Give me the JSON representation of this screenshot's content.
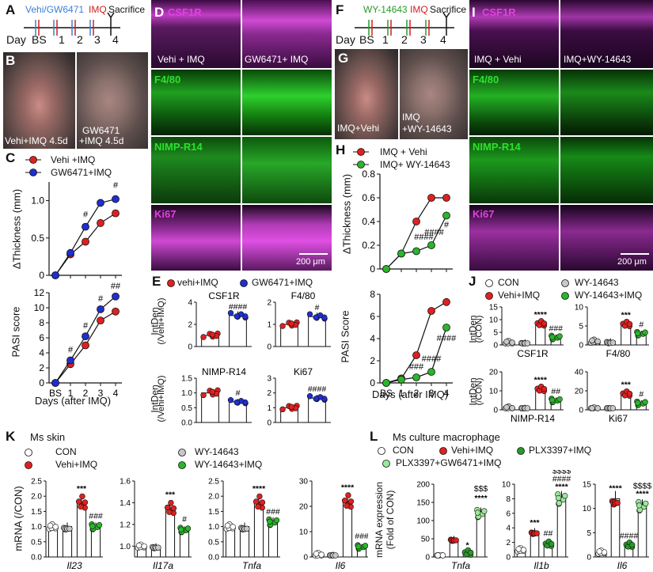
{
  "panels": {
    "A": {
      "letter": "A",
      "group": "Vehi/GW6471",
      "imq": "IMQ",
      "sacrifice": "Sacrifice",
      "day": "Day",
      "days": [
        "BS",
        "1",
        "2",
        "3",
        "4"
      ]
    },
    "B": {
      "letter": "B",
      "left": "Vehi+IMQ 4.5d",
      "right1": "GW6471",
      "right2": "+IMQ 4.5d"
    },
    "C": {
      "letter": "C",
      "legend": [
        "Vehi +IMQ",
        "GW6471+IMQ"
      ],
      "ylabel_top": "ΔThickness (mm)",
      "ylabel_bottom": "PASI score",
      "xlabel": "Days (after IMQ)",
      "xticks": [
        "BS",
        "1",
        "2",
        "3",
        "4"
      ]
    },
    "D": {
      "letter": "D",
      "stains": [
        "CSF1R",
        "F4/80",
        "NIMP-R14",
        "Ki67"
      ],
      "left_cond": "Vehi + IMQ",
      "right_cond": "GW6471+ IMQ",
      "scale": "200 μm"
    },
    "E": {
      "letter": "E",
      "legend": [
        "vehi+IMQ",
        "GW6471+IMQ"
      ],
      "ylabel": "IntDen",
      "ysub": "(/Vehi+IMQ)",
      "subplots": [
        "CSF1R",
        "F4/80",
        "NIMP-R14",
        "Ki67"
      ]
    },
    "F": {
      "letter": "F",
      "group": "WY-14643",
      "imq": "IMQ",
      "sacrifice": "Sacrifice",
      "day": "Day",
      "days": [
        "BS",
        "1",
        "2",
        "3",
        "4"
      ]
    },
    "G": {
      "letter": "G",
      "left": "IMQ+Vehi",
      "right1": "IMQ",
      "right2": "+WY-14643"
    },
    "H": {
      "letter": "H",
      "legend": [
        "IMQ + Vehi",
        "IMQ+ WY-14643"
      ],
      "ylabel_top": "ΔThickness (mm)",
      "ylabel_bottom": "PASI Score",
      "xlabel": "Days (after IMQ)",
      "xticks": [
        "BS",
        "1",
        "2",
        "3",
        "4"
      ]
    },
    "I": {
      "letter": "I",
      "stains": [
        "CSF1R",
        "F4/80",
        "NIMP-R14",
        "Ki67"
      ],
      "left_cond": "IMQ + Vehi",
      "right_cond": "IMQ+WY-14643",
      "scale": "200 μm"
    },
    "J": {
      "letter": "J",
      "legend": [
        "CON",
        "WY-14643",
        "Vehi+IMQ",
        "WY-14643+IMQ"
      ],
      "ylabel": "IntDen",
      "ysub": "(/CON)",
      "subplots": [
        "CSF1R",
        "F4/80",
        "NIMP-R14",
        "Ki67"
      ]
    },
    "K": {
      "letter": "K",
      "title": "Ms skin",
      "legend": [
        "CON",
        "WY-14643",
        "Vehi+IMQ",
        "WY-14643+IMQ"
      ],
      "ylabel": "mRNA (/CON)",
      "genes": [
        "Il23",
        "Il17a",
        "Tnfa",
        "Il6"
      ]
    },
    "L": {
      "letter": "L",
      "title": "Ms culture macrophage",
      "legend": [
        "CON",
        "Vehi+IMQ",
        "PLX3397+IMQ",
        "PLX3397+GW6471+IMQ"
      ],
      "ylabel1": "mRNA expression",
      "ylabel2": "(Fold of CON)",
      "genes": [
        "Tnfa",
        "Il1b",
        "Il6"
      ]
    }
  },
  "chart_data": [
    {
      "id": "C_thickness",
      "type": "line",
      "x": [
        "BS",
        "1",
        "2",
        "3",
        "4"
      ],
      "series": [
        {
          "name": "Vehi +IMQ",
          "values": [
            0,
            0.28,
            0.45,
            0.7,
            0.83
          ]
        },
        {
          "name": "GW6471+IMQ",
          "values": [
            0,
            0.3,
            0.65,
            0.97,
            1.02
          ]
        }
      ],
      "ylim": [
        0,
        1.25
      ],
      "yticks": [
        "0",
        "0.5",
        "1.0"
      ],
      "annotations": [
        "#",
        "#"
      ]
    },
    {
      "id": "C_pasi",
      "type": "line",
      "x": [
        "BS",
        "1",
        "2",
        "3",
        "4"
      ],
      "series": [
        {
          "name": "Vehi +IMQ",
          "values": [
            0,
            2.5,
            5.0,
            8.3,
            9.5
          ]
        },
        {
          "name": "GW6471+IMQ",
          "values": [
            0,
            3.0,
            6.2,
            9.8,
            11.5
          ]
        }
      ],
      "ylim": [
        0,
        12
      ],
      "yticks": [
        "0",
        "2",
        "4",
        "6",
        "8",
        "10",
        "12"
      ],
      "annotations": [
        "#",
        "#",
        "#",
        "##"
      ]
    },
    {
      "id": "H_thickness",
      "type": "line",
      "x": [
        "BS",
        "1",
        "2",
        "3",
        "4"
      ],
      "series": [
        {
          "name": "IMQ + Vehi",
          "values": [
            0,
            0.13,
            0.4,
            0.6,
            0.6
          ]
        },
        {
          "name": "IMQ+ WY-14643",
          "values": [
            0,
            0.13,
            0.15,
            0.2,
            0.45
          ]
        }
      ],
      "ylim": [
        0,
        0.8
      ],
      "yticks": [
        "0",
        "0.2",
        "0.4",
        "0.6",
        "0.8"
      ],
      "annotations": [
        "####",
        "####",
        "#"
      ]
    },
    {
      "id": "H_pasi",
      "type": "line",
      "x": [
        "BS",
        "1",
        "2",
        "3",
        "4"
      ],
      "series": [
        {
          "name": "IMQ + Vehi",
          "values": [
            0,
            0.4,
            2.5,
            6.5,
            7.3
          ]
        },
        {
          "name": "IMQ+ WY-14643",
          "values": [
            0,
            0.3,
            0.5,
            1.0,
            5.0
          ]
        }
      ],
      "ylim": [
        0,
        8
      ],
      "yticks": [
        "0",
        "2",
        "4",
        "6",
        "8"
      ],
      "annotations": [
        "###",
        "####",
        "####"
      ]
    },
    {
      "id": "E",
      "type": "bar",
      "subplots": [
        {
          "title": "CSF1R",
          "values": [
            1.0,
            2.8
          ],
          "ylim": [
            0,
            4
          ],
          "yticks": [
            "0",
            "2",
            "4"
          ],
          "sig": "####"
        },
        {
          "title": "F4/80",
          "values": [
            1.0,
            1.35
          ],
          "ylim": [
            0,
            2
          ],
          "yticks": [
            "0",
            "1",
            "2"
          ],
          "sig": "#"
        },
        {
          "title": "NIMP-R14",
          "values": [
            1.0,
            0.7
          ],
          "ylim": [
            0,
            1.5
          ],
          "yticks": [
            "0.0",
            "0.5",
            "1.0",
            "1.5"
          ],
          "sig": "#"
        },
        {
          "title": "Ki67",
          "values": [
            1.0,
            1.65
          ],
          "ylim": [
            0,
            3
          ],
          "yticks": [
            "0",
            "1",
            "2",
            "3"
          ],
          "sig": "####"
        }
      ]
    },
    {
      "id": "J",
      "type": "bar",
      "subplots": [
        {
          "title": "CSF1R",
          "values": [
            1.0,
            1.1,
            8.5,
            3.0
          ],
          "ylim": [
            0,
            15
          ],
          "yticks": [
            "0",
            "5",
            "10",
            "15"
          ],
          "sig": [
            "****",
            "###"
          ]
        },
        {
          "title": "F4/80",
          "values": [
            1.0,
            1.0,
            5.5,
            3.0
          ],
          "ylim": [
            0,
            10
          ],
          "yticks": [
            "0",
            "5",
            "10"
          ],
          "sig": [
            "***",
            "#"
          ]
        },
        {
          "title": "NIMP-R14",
          "values": [
            1.0,
            1.2,
            11.0,
            5.0
          ],
          "ylim": [
            0,
            20
          ],
          "yticks": [
            "0",
            "10",
            "20"
          ],
          "sig": [
            "****",
            "##"
          ]
        },
        {
          "title": "Ki67",
          "values": [
            1.0,
            1.0,
            17.0,
            7.0
          ],
          "ylim": [
            0,
            40
          ],
          "yticks": [
            "0",
            "20",
            "40"
          ],
          "sig": [
            "***",
            "#"
          ]
        }
      ]
    },
    {
      "id": "K",
      "type": "bar",
      "subplots": [
        {
          "gene": "Il23",
          "values": [
            1.0,
            1.0,
            1.8,
            1.0
          ],
          "ylim": [
            0,
            2.5
          ],
          "yticks": [
            "0.0",
            "0.5",
            "1.0",
            "1.5",
            "2.0",
            "2.5"
          ],
          "sig": [
            "***",
            "###"
          ]
        },
        {
          "gene": "Il17a",
          "values": [
            1.0,
            1.0,
            1.35,
            1.15
          ],
          "ylim": [
            0.9,
            1.6
          ],
          "yticks": [
            "1.0",
            "1.2",
            "1.4",
            "1.6"
          ],
          "sig": [
            "***",
            "#"
          ]
        },
        {
          "gene": "Tnfa",
          "values": [
            1.0,
            1.0,
            1.8,
            1.15
          ],
          "ylim": [
            0,
            2.5
          ],
          "yticks": [
            "0.0",
            "0.5",
            "1.0",
            "1.5",
            "2.0",
            "2.5"
          ],
          "sig": [
            "****",
            "###"
          ]
        },
        {
          "gene": "Il6",
          "values": [
            1.0,
            1.0,
            22.0,
            4.0
          ],
          "ylim": [
            0,
            30
          ],
          "yticks": [
            "0",
            "10",
            "20",
            "30"
          ],
          "sig": [
            "****",
            "###"
          ]
        }
      ]
    },
    {
      "id": "L",
      "type": "bar",
      "subplots": [
        {
          "gene": "Tnfa",
          "values": [
            1,
            50,
            12,
            120
          ],
          "ylim": [
            0,
            200
          ],
          "yticks": [
            "0",
            "50",
            "100",
            "150",
            "200"
          ],
          "sig": [
            "*",
            "$$$",
            "****"
          ]
        },
        {
          "gene": "Il1b",
          "values": [
            1,
            3.5,
            1.8,
            8.0
          ],
          "ylim": [
            0,
            10
          ],
          "yticks": [
            "0",
            "2",
            "4",
            "6",
            "8",
            "10"
          ],
          "sig": [
            "***",
            "##",
            "$$$$",
            "####",
            "****"
          ]
        },
        {
          "gene": "Il6",
          "values": [
            1,
            12,
            2.5,
            10.5
          ],
          "ylim": [
            0,
            15
          ],
          "yticks": [
            "0",
            "5",
            "10",
            "15"
          ],
          "sig": [
            "****",
            "####",
            "$$$$",
            "****"
          ]
        }
      ]
    }
  ],
  "colors": {
    "red": "#e02020",
    "blue": "#1f2fd0",
    "green": "#2ab52a",
    "lightgreen": "#9be89b",
    "grey": "#c8c8c8",
    "magenta": "#e040e0",
    "fluor_green": "#2ee02e",
    "timeline_blue": "#3b7fd6",
    "timeline_red": "#d02020",
    "wy_green": "#2a9a2a"
  }
}
